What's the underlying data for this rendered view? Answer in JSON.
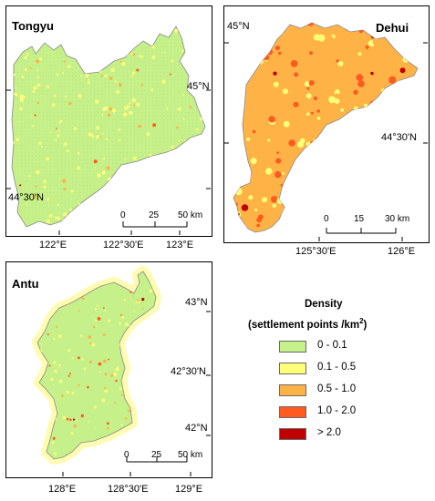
{
  "panels": {
    "tongyu": {
      "name": "Tongyu",
      "lat_labels": [
        "45°N",
        "44°30'N"
      ],
      "lon_labels": [
        "122°E",
        "122°30'E",
        "123°E"
      ],
      "scale": {
        "ticks": [
          "0",
          "25",
          "50 km"
        ]
      }
    },
    "dehui": {
      "name": "Dehui",
      "lat_labels": [
        "45°N",
        "44°30'N"
      ],
      "lon_labels": [
        "125°30'E",
        "126°E"
      ],
      "scale": {
        "ticks": [
          "0",
          "15",
          "30 km"
        ]
      }
    },
    "antu": {
      "name": "Antu",
      "lat_labels": [
        "43°N",
        "42°30'N",
        "42°N"
      ],
      "lon_labels": [
        "128°E",
        "128°30'E",
        "129°E"
      ],
      "scale": {
        "ticks": [
          "0",
          "25",
          "50 km"
        ]
      }
    }
  },
  "legend": {
    "title": "Density",
    "subtitle_main": "(settlement points /km",
    "subtitle_sup": "2",
    "subtitle_end": ")",
    "classes": [
      {
        "label": "0 - 0.1",
        "color": "#c6f08a"
      },
      {
        "label": "0.1 - 0.5",
        "color": "#ffff7a"
      },
      {
        "label": "0.5 - 1.0",
        "color": "#ffb347"
      },
      {
        "label": "1.0 - 2.0",
        "color": "#ff5a1f"
      },
      {
        "label": "> 2.0",
        "color": "#c00000"
      }
    ]
  }
}
